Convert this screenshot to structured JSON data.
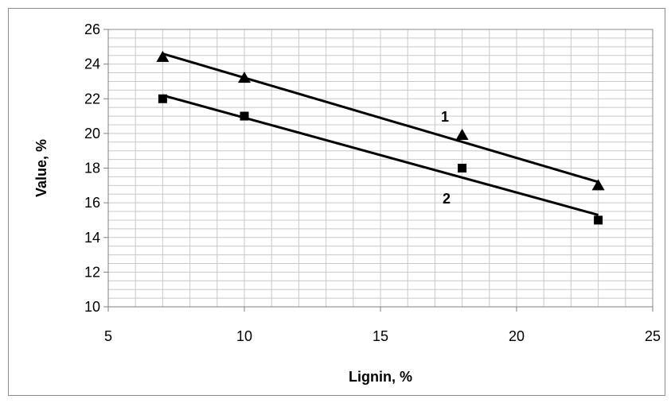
{
  "chart_data": {
    "type": "scatter",
    "title": "",
    "xlabel": "Lignin, %",
    "ylabel": "Value, %",
    "xlim": [
      5,
      25
    ],
    "ylim": [
      10,
      26
    ],
    "x_ticks": [
      5,
      10,
      15,
      20,
      25
    ],
    "y_ticks": [
      10,
      12,
      14,
      16,
      18,
      20,
      22,
      24,
      26
    ],
    "grid": true,
    "legend": "none",
    "series": [
      {
        "label": "1",
        "marker": "triangle",
        "color": "#000000",
        "x": [
          7,
          10,
          18,
          23
        ],
        "y": [
          24.4,
          23.2,
          19.9,
          17.0
        ],
        "trendline": {
          "x": [
            7,
            23
          ],
          "y": [
            24.6,
            17.2
          ]
        }
      },
      {
        "label": "2",
        "marker": "square",
        "color": "#000000",
        "x": [
          7,
          10,
          18,
          23
        ],
        "y": [
          22.0,
          21.0,
          18.0,
          15.0
        ],
        "trendline": {
          "x": [
            7,
            23
          ],
          "y": [
            22.2,
            15.3
          ]
        }
      }
    ]
  }
}
